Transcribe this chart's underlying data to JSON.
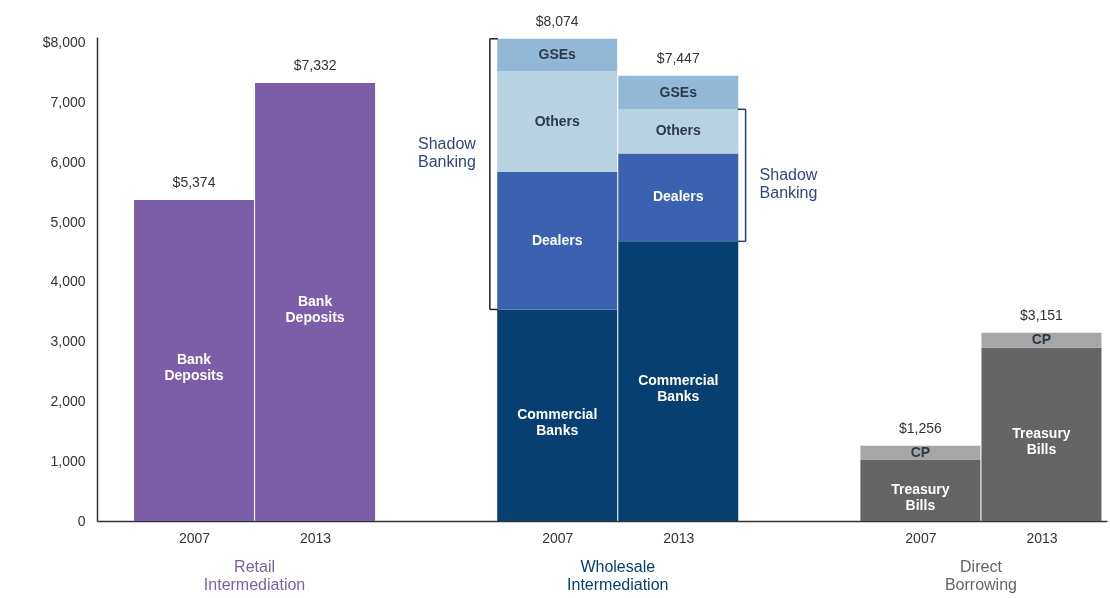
{
  "chart_data": {
    "type": "bar",
    "stacked": true,
    "categories": [
      "2007",
      "2013",
      "2007",
      "2013",
      "2007",
      "2013"
    ],
    "series": [
      {
        "name": "Bank Deposits",
        "color": "#7b5ea7",
        "values": [
          5374,
          7332,
          null,
          null,
          null,
          null
        ]
      },
      {
        "name": "Commercial Banks",
        "color": "#063f70",
        "values": [
          null,
          null,
          3540,
          4680,
          null,
          null
        ]
      },
      {
        "name": "Dealers",
        "color": "#3a62b0",
        "values": [
          null,
          null,
          2300,
          1470,
          null,
          null
        ]
      },
      {
        "name": "Others",
        "color": "#b7d2e3",
        "values": [
          null,
          null,
          1690,
          740,
          null,
          null
        ]
      },
      {
        "name": "GSEs",
        "color": "#93b8d6",
        "values": [
          null,
          null,
          540,
          560,
          null,
          null
        ]
      },
      {
        "name": "Treasury Bills",
        "color": "#646464",
        "values": [
          null,
          null,
          null,
          null,
          1030,
          2900
        ]
      },
      {
        "name": "CP",
        "color": "#a6a6a6",
        "values": [
          null,
          null,
          null,
          null,
          230,
          250
        ]
      }
    ],
    "totals": [
      "$5,374",
      "$7,332",
      "$8,074",
      "$7,447",
      "$1,256",
      "$3,151"
    ],
    "ylim": [
      0,
      8100
    ],
    "yticks": [
      0,
      {
        "value": 1000,
        "label": "1,000"
      },
      {
        "value": 2000,
        "label": "2,000"
      },
      {
        "value": 3000,
        "label": "3,000"
      },
      {
        "value": 4000,
        "label": "4,000"
      },
      {
        "value": 5000,
        "label": "5,000"
      },
      {
        "value": 6000,
        "label": "6,000"
      },
      {
        "value": 7000,
        "label": "7,000"
      },
      {
        "value": 8000,
        "label": "$8,000"
      }
    ],
    "annotations": [
      "Retail Intermediation",
      "Wholesale Intermediation",
      "Direct Borrowing",
      "Shadow Banking",
      "Shadow Banking"
    ]
  }
}
